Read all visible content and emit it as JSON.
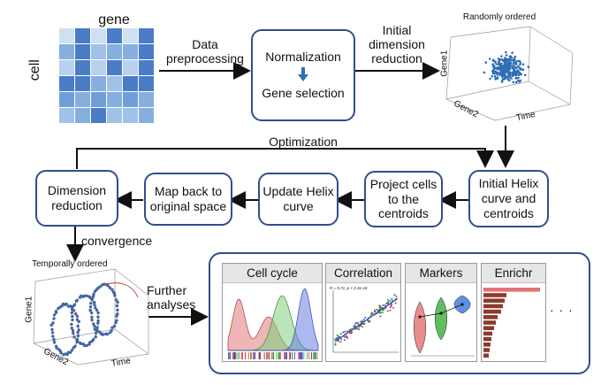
{
  "heatmap": {
    "column_label": "gene",
    "row_label": "cell",
    "colors": [
      "#cfe0f2",
      "#9fc2e6",
      "#6f9fd8",
      "#4a7cc8",
      "#b7d1ee",
      "#86afdf"
    ]
  },
  "arrows": {
    "preprocessing": "Data\npreprocessing",
    "initial_reduction": "Initial\ndimension\nreduction",
    "optimization": "Optimization",
    "convergence": "convergence",
    "further": "Further\nanalyses"
  },
  "norm_box": {
    "line1": "Normalization",
    "line2": "Gene selection"
  },
  "scatter_random": {
    "title": "Randomly ordered",
    "axis_y": "Gene1",
    "axis_x": "Gene2",
    "axis_t": "Time"
  },
  "loop_boxes": {
    "dimension_reduction": "Dimension\nreduction",
    "map_back": "Map back to\noriginal space",
    "update_helix": "Update Helix\ncurve",
    "project_cells": "Project cells\nto the\ncentroids",
    "initial_helix": "Initial Helix\ncurve and\ncentroids"
  },
  "helix_plot": {
    "title": "Temporally ordered",
    "axis_y": "Gene1",
    "axis_x": "Gene2",
    "axis_t": "Time"
  },
  "panels": {
    "cell_cycle": "Cell cycle",
    "correlation": "Correlation",
    "correlation_stat": "R = 0.71, p < 2.2e-16",
    "markers": "Markers",
    "enrichr": "Enrichr",
    "ellipsis": "· · ·"
  },
  "colors": {
    "box_border": "#2f4f8f",
    "point_blue": "#2f6db5",
    "density_red": "#e07a7a",
    "density_green": "#7fcf7f",
    "density_blue": "#6a7fe0",
    "enrichr_bar": "#e57373",
    "enrichr_bar_dark": "#8b3a2e"
  }
}
